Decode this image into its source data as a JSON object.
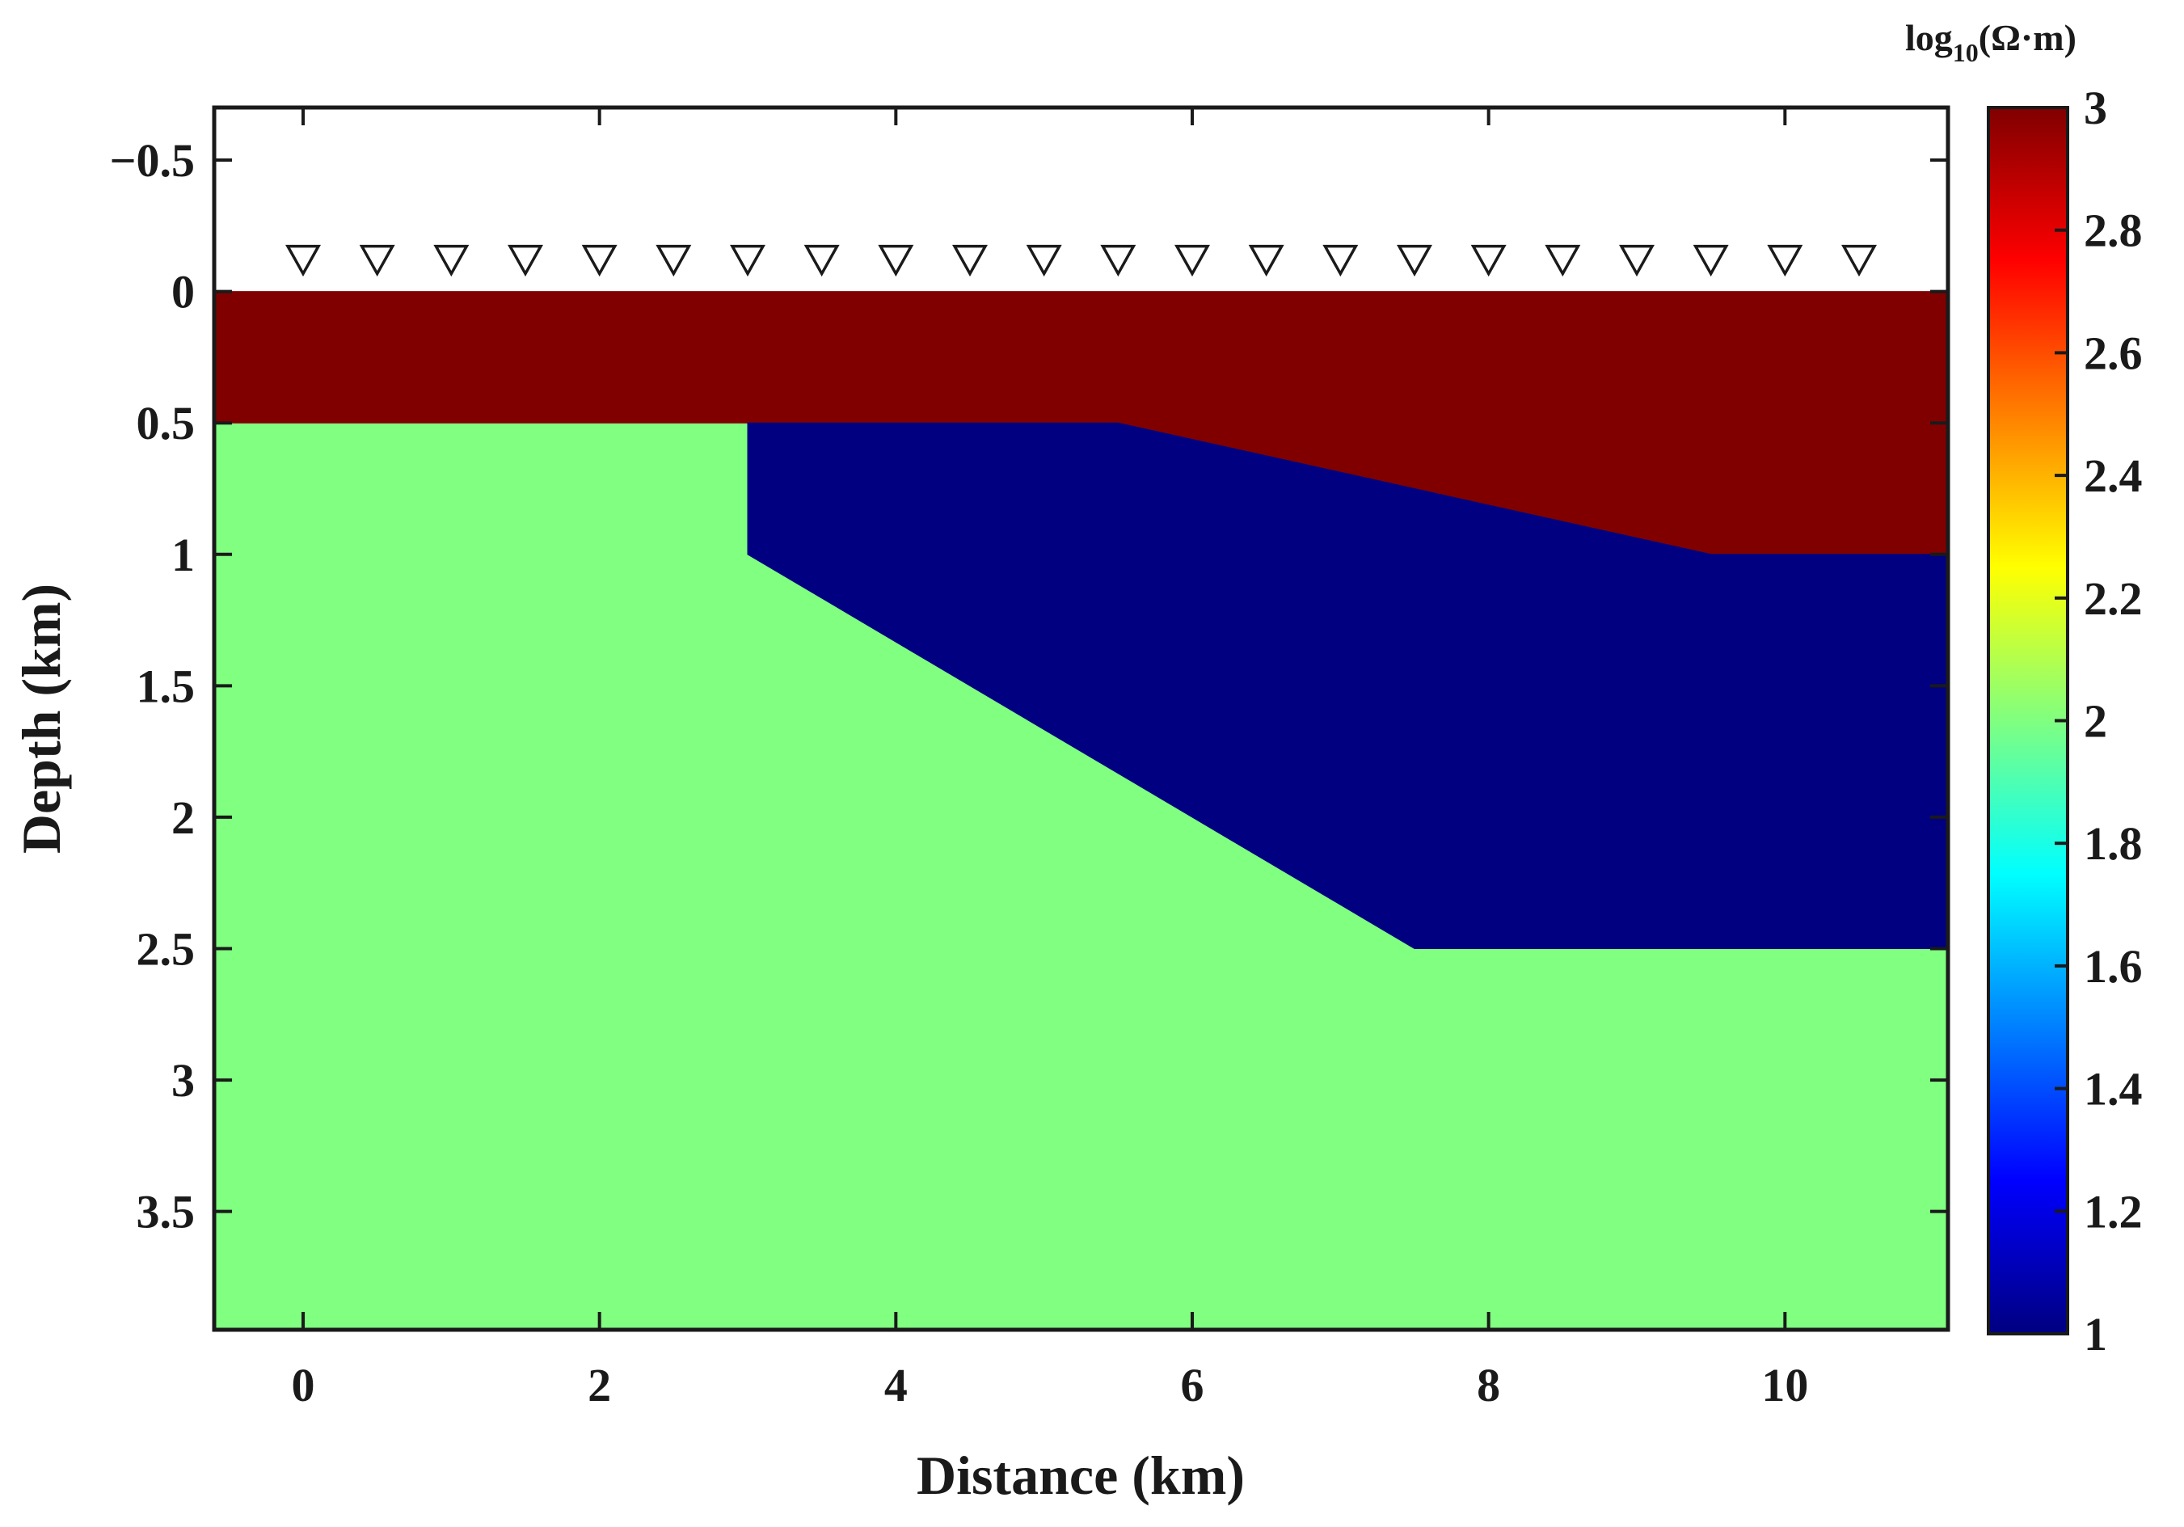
{
  "chart_data": {
    "type": "heatmap",
    "title": "",
    "xlabel": "Distance (km)",
    "ylabel": "Depth (km)",
    "xlim": [
      -0.6,
      11.1
    ],
    "ylim": [
      -0.7,
      3.95
    ],
    "y_reversed": true,
    "xticks": [
      0,
      2,
      4,
      6,
      8,
      10
    ],
    "xtick_labels": [
      "0",
      "2",
      "4",
      "6",
      "8",
      "10"
    ],
    "yticks": [
      -0.5,
      0,
      0.5,
      1,
      1.5,
      2,
      2.5,
      3,
      3.5
    ],
    "ytick_labels": [
      "−0.5",
      "0",
      "0.5",
      "1",
      "1.5",
      "2",
      "2.5",
      "3",
      "3.5"
    ],
    "colorbar": {
      "title_main": "log",
      "title_sub": "10",
      "title_rest": "(Ω·m)",
      "colormap": "jet",
      "range": [
        1,
        3
      ],
      "ticks": [
        1,
        1.2,
        1.4,
        1.6,
        1.8,
        2,
        2.2,
        2.4,
        2.6,
        2.8,
        3
      ],
      "tick_labels": [
        "1",
        "1.2",
        "1.4",
        "1.6",
        "1.8",
        "2",
        "2.2",
        "2.4",
        "2.6",
        "2.8",
        "3"
      ]
    },
    "air_color": "#ffffff",
    "regions": [
      {
        "value": 2,
        "color": "#80ff80",
        "polygon": [
          [
            -0.6,
            0.5
          ],
          [
            11.1,
            0.5
          ],
          [
            11.1,
            3.95
          ],
          [
            -0.6,
            3.95
          ]
        ]
      },
      {
        "value": 3,
        "color": "#800000",
        "polygon": [
          [
            -0.6,
            0
          ],
          [
            11.1,
            0
          ],
          [
            11.1,
            1.0
          ],
          [
            9.5,
            1.0
          ],
          [
            5.5,
            0.5
          ],
          [
            -0.6,
            0.5
          ]
        ]
      },
      {
        "value": 1,
        "color": "#000080",
        "polygon": [
          [
            3.0,
            0.5
          ],
          [
            5.5,
            0.5
          ],
          [
            9.5,
            1.0
          ],
          [
            11.1,
            1.0
          ],
          [
            11.1,
            2.5
          ],
          [
            7.5,
            2.5
          ],
          [
            3.0,
            1.0
          ]
        ]
      }
    ],
    "stations": {
      "marker": "inverted-triangle",
      "depth": -0.12,
      "x": [
        0,
        0.5,
        1,
        1.5,
        2,
        2.5,
        3,
        3.5,
        4,
        4.5,
        5,
        5.5,
        6,
        6.5,
        7,
        7.5,
        8,
        8.5,
        9,
        9.5,
        10,
        10.5
      ]
    }
  }
}
